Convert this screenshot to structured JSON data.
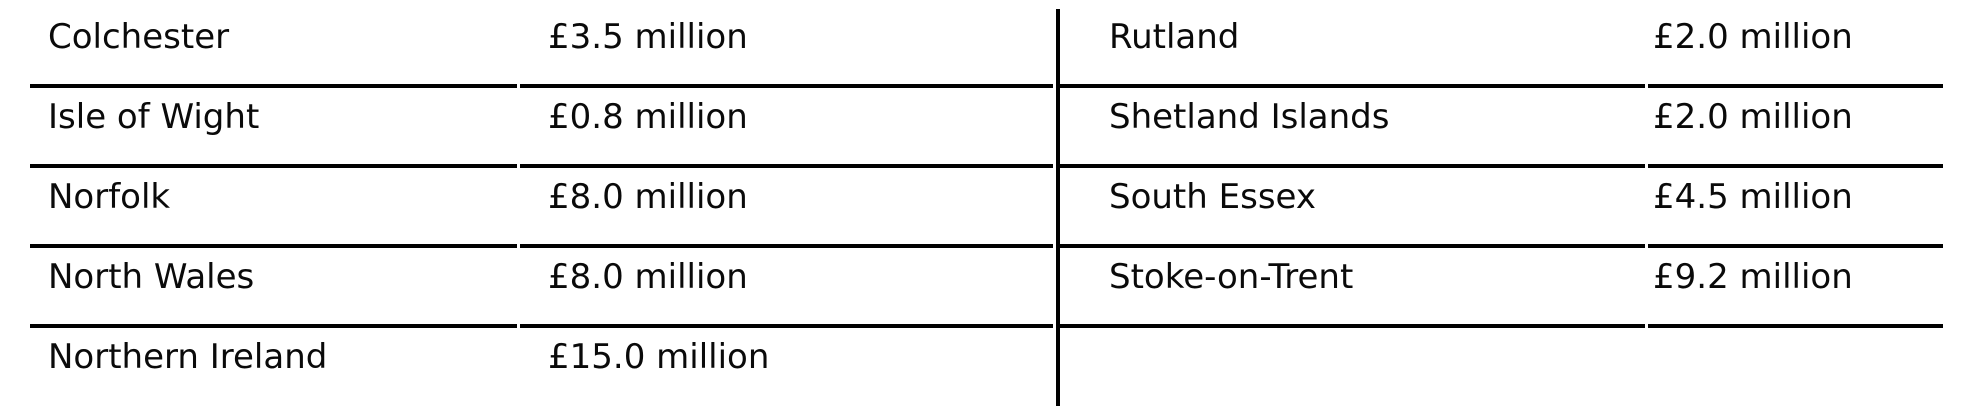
{
  "table": {
    "description": "Two-panel table of regions and funding amounts",
    "colors": {
      "line": "#000000",
      "text": "#0a0a0a",
      "background": "#ffffff"
    },
    "left": {
      "rows": [
        {
          "name": "Colchester",
          "value": "£3.5 million"
        },
        {
          "name": "Isle of Wight",
          "value": "£0.8 million"
        },
        {
          "name": "Norfolk",
          "value": "£8.0 million"
        },
        {
          "name": "North Wales",
          "value": "£8.0 million"
        },
        {
          "name": "Northern Ireland",
          "value": "£15.0 million"
        }
      ]
    },
    "right": {
      "rows": [
        {
          "name": "Rutland",
          "value": "£2.0 million"
        },
        {
          "name": "Shetland Islands",
          "value": "£2.0 million"
        },
        {
          "name": "South Essex",
          "value": "£4.5 million"
        },
        {
          "name": "Stoke-on-Trent",
          "value": "£9.2 million"
        },
        {
          "name": "",
          "value": ""
        }
      ]
    }
  }
}
